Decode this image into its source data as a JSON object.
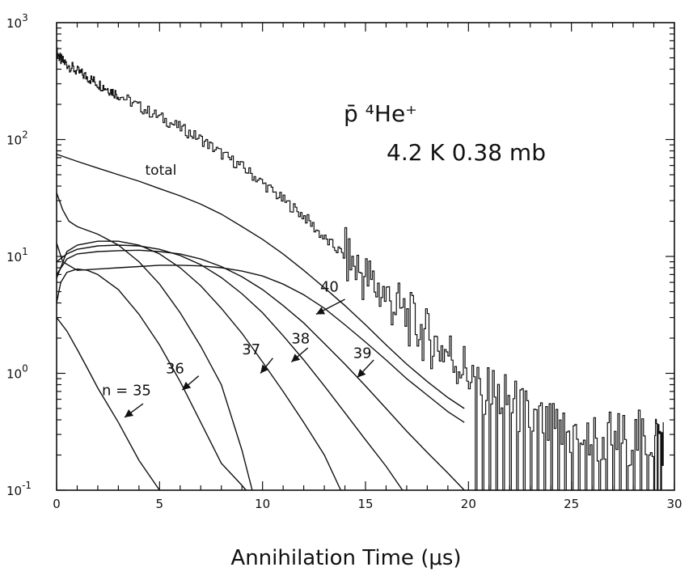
{
  "chart_data": {
    "type": "line",
    "title_line1": "p̄ ⁴He⁺",
    "title_line2": "4.2 K  0.38 mb",
    "xlabel": "Annihilation Time  (μs)",
    "ylabel": "",
    "xlim": [
      0,
      30
    ],
    "ylim": [
      0.1,
      1000
    ],
    "yscale": "log",
    "grid": false,
    "x_ticks": [
      "0",
      "5",
      "10",
      "15",
      "20",
      "25",
      "30"
    ],
    "y_ticks": [
      {
        "base": "10",
        "exp": "-1"
      },
      {
        "base": "10",
        "exp": "0"
      },
      {
        "base": "10",
        "exp": "1"
      },
      {
        "base": "10",
        "exp": "2"
      },
      {
        "base": "10",
        "exp": "3"
      }
    ],
    "annotations": [
      {
        "text": "total",
        "x": 4.3,
        "y": 50
      },
      {
        "text": "40",
        "x": 12.8,
        "y": 5.0
      },
      {
        "text": "39",
        "x": 14.4,
        "y": 1.35
      },
      {
        "text": "38",
        "x": 11.4,
        "y": 1.8
      },
      {
        "text": "37",
        "x": 9.0,
        "y": 1.45
      },
      {
        "text": "36",
        "x": 5.3,
        "y": 1.0
      },
      {
        "text": "n = 35",
        "x": 2.2,
        "y": 0.65
      }
    ],
    "series": [
      {
        "x": [
          0,
          0.2,
          0.5,
          1,
          1.5,
          2,
          2.5,
          3,
          4,
          5,
          6,
          7,
          8,
          9,
          10,
          11,
          12,
          13,
          14,
          15,
          16,
          17,
          18,
          19,
          20,
          21,
          22,
          23,
          24,
          25,
          26,
          27,
          28,
          29,
          29.5
        ],
        "y": [
          560,
          480,
          440,
          380,
          340,
          300,
          270,
          240,
          190,
          155,
          125,
          100,
          75,
          58,
          42,
          30,
          22,
          14,
          10,
          6.5,
          4.5,
          3.0,
          2.0,
          1.5,
          1.0,
          0.7,
          0.55,
          0.4,
          0.32,
          0.3,
          0.28,
          0.28,
          0.28,
          0.28,
          0.28
        ]
      },
      {
        "x": [
          0,
          1,
          2,
          3,
          4,
          5,
          6,
          7,
          8,
          9,
          10,
          11,
          12,
          13,
          14,
          15,
          16,
          17,
          18,
          19,
          19.8
        ],
        "y": [
          75,
          65,
          57,
          50,
          44,
          38,
          33,
          28,
          23,
          18,
          14,
          10.5,
          7.6,
          5.4,
          3.8,
          2.6,
          1.75,
          1.2,
          0.85,
          0.62,
          0.5
        ]
      },
      {
        "x": [
          0,
          0.3,
          1,
          2,
          3,
          4,
          5,
          6,
          7,
          8,
          9,
          10,
          11,
          12,
          13,
          14,
          15,
          16,
          17,
          18,
          19,
          19.8
        ],
        "y": [
          13,
          9.0,
          7.6,
          7.8,
          8.0,
          8.2,
          8.4,
          8.4,
          8.3,
          8.0,
          7.5,
          6.8,
          5.8,
          4.7,
          3.6,
          2.6,
          1.85,
          1.3,
          0.9,
          0.65,
          0.47,
          0.38
        ]
      },
      {
        "x": [
          0,
          0.5,
          1,
          2,
          3,
          4,
          5,
          6,
          7,
          8,
          9,
          10,
          11,
          12,
          13,
          14,
          15,
          16,
          17,
          18,
          19,
          19.8
        ],
        "y": [
          7,
          9.5,
          10.5,
          11.0,
          11.2,
          11.3,
          11.0,
          10.5,
          9.5,
          8.2,
          6.7,
          5.2,
          3.8,
          2.7,
          1.8,
          1.2,
          0.78,
          0.5,
          0.32,
          0.21,
          0.14,
          0.1
        ]
      },
      {
        "x": [
          0,
          0.5,
          1,
          2,
          3,
          4,
          5,
          6,
          7,
          8,
          9,
          10,
          11,
          12,
          13,
          14,
          15,
          16,
          16.8
        ],
        "y": [
          9,
          10.5,
          11.5,
          12.3,
          12.5,
          12.3,
          11.5,
          10.2,
          8.5,
          6.6,
          4.8,
          3.3,
          2.1,
          1.3,
          0.78,
          0.46,
          0.27,
          0.16,
          0.1
        ]
      },
      {
        "x": [
          0,
          0.5,
          1,
          2,
          3,
          4,
          5,
          6,
          7,
          8,
          9,
          10,
          11,
          12,
          13,
          13.8
        ],
        "y": [
          6.5,
          11,
          12.5,
          13.5,
          13.5,
          12.5,
          10.5,
          8.0,
          5.6,
          3.6,
          2.2,
          1.25,
          0.7,
          0.38,
          0.2,
          0.1
        ]
      },
      {
        "x": [
          0,
          0.3,
          0.6,
          1,
          2,
          3,
          4,
          5,
          6,
          7,
          8,
          9,
          9.5
        ],
        "y": [
          35,
          25,
          20,
          18,
          15.5,
          12.5,
          9.0,
          5.8,
          3.3,
          1.7,
          0.8,
          0.22,
          0.1
        ]
      },
      {
        "x": [
          0,
          0.2,
          0.5,
          1,
          1.5,
          2,
          3,
          4,
          5,
          6,
          7,
          8,
          9,
          9.2
        ],
        "y": [
          4.0,
          6.0,
          7.3,
          7.8,
          7.6,
          7.0,
          5.2,
          3.2,
          1.75,
          0.85,
          0.38,
          0.17,
          0.11,
          0.1
        ]
      },
      {
        "x": [
          0,
          0.5,
          1,
          1.5,
          2,
          3,
          4,
          5
        ],
        "y": [
          3.0,
          2.3,
          1.6,
          1.1,
          0.75,
          0.38,
          0.18,
          0.1
        ]
      }
    ],
    "arrows": [
      {
        "from": [
          14.0,
          4.3
        ],
        "to": [
          12.6,
          3.2
        ]
      },
      {
        "from": [
          15.4,
          1.3
        ],
        "to": [
          14.6,
          0.92
        ]
      },
      {
        "from": [
          12.2,
          1.65
        ],
        "to": [
          11.4,
          1.25
        ]
      },
      {
        "from": [
          10.5,
          1.35
        ],
        "to": [
          9.9,
          1.0
        ]
      },
      {
        "from": [
          6.9,
          0.95
        ],
        "to": [
          6.1,
          0.72
        ]
      },
      {
        "from": [
          4.2,
          0.55
        ],
        "to": [
          3.3,
          0.42
        ]
      }
    ]
  }
}
